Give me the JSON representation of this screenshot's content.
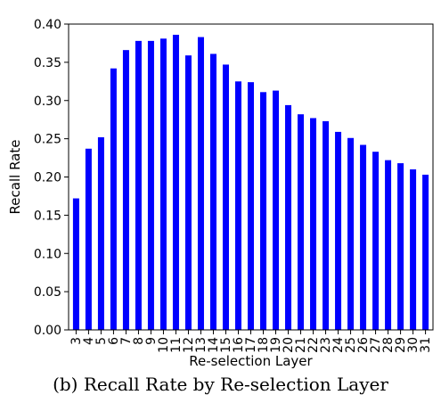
{
  "chart_data": {
    "type": "bar",
    "categories": [
      "3",
      "4",
      "5",
      "6",
      "7",
      "8",
      "9",
      "10",
      "11",
      "12",
      "13",
      "14",
      "15",
      "16",
      "17",
      "18",
      "19",
      "20",
      "21",
      "22",
      "23",
      "24",
      "25",
      "26",
      "27",
      "28",
      "29",
      "30",
      "31"
    ],
    "values": [
      0.172,
      0.237,
      0.252,
      0.342,
      0.366,
      0.378,
      0.378,
      0.381,
      0.386,
      0.359,
      0.383,
      0.361,
      0.347,
      0.325,
      0.324,
      0.311,
      0.313,
      0.294,
      0.282,
      0.277,
      0.273,
      0.259,
      0.251,
      0.242,
      0.233,
      0.222,
      0.218,
      0.21,
      0.203
    ],
    "xlabel": "Re-selection Layer",
    "ylabel": "Recall Rate",
    "ylim": [
      0,
      0.4
    ],
    "yticks": [
      "0.00",
      "0.05",
      "0.10",
      "0.15",
      "0.20",
      "0.25",
      "0.30",
      "0.35",
      "0.40"
    ],
    "grid": false,
    "bar_color": "#0000ff"
  },
  "caption": "(b) Recall Rate by Re-selection Layer"
}
